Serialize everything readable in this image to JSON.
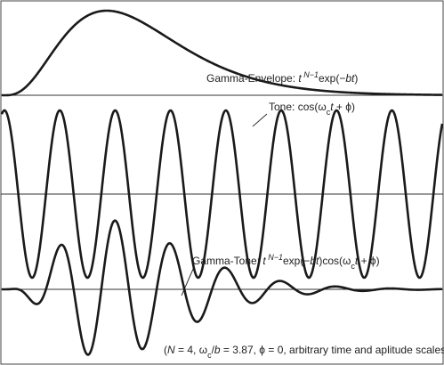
{
  "envelope_label": [
    {
      "text": "Gamma-Envelope: ",
      "role": "plain"
    },
    {
      "text": "t",
      "role": "italic"
    },
    {
      "text": " N−1",
      "role": "sup"
    },
    {
      "text": "exp(−",
      "role": "plain"
    },
    {
      "text": "bt",
      "role": "italic"
    },
    {
      "text": ")",
      "role": "plain"
    }
  ],
  "tone_label": [
    {
      "text": "Tone: cos(ω",
      "role": "plain"
    },
    {
      "text": "c",
      "role": "sub"
    },
    {
      "text": "t",
      "role": "italic"
    },
    {
      "text": " + ϕ)",
      "role": "plain"
    }
  ],
  "gammatone_label": [
    {
      "text": "Gamma-Tone: ",
      "role": "plain"
    },
    {
      "text": "t",
      "role": "italic"
    },
    {
      "text": " N−1",
      "role": "sup"
    },
    {
      "text": "exp(−",
      "role": "plain"
    },
    {
      "text": "bt",
      "role": "italic"
    },
    {
      "text": ")cos(ω",
      "role": "plain"
    },
    {
      "text": "c",
      "role": "sub"
    },
    {
      "text": "t",
      "role": "italic"
    },
    {
      "text": " + ϕ)",
      "role": "plain"
    }
  ],
  "footnote": [
    {
      "text": "(",
      "role": "plain"
    },
    {
      "text": "N",
      "role": "italic"
    },
    {
      "text": " = 4, ω",
      "role": "plain"
    },
    {
      "text": "c",
      "role": "sub"
    },
    {
      "text": "/",
      "role": "plain"
    },
    {
      "text": "b",
      "role": "italic"
    },
    {
      "text": " = 3.87, ϕ = 0, arbitrary time and aplitude scales",
      "role": "plain"
    }
  ]
}
